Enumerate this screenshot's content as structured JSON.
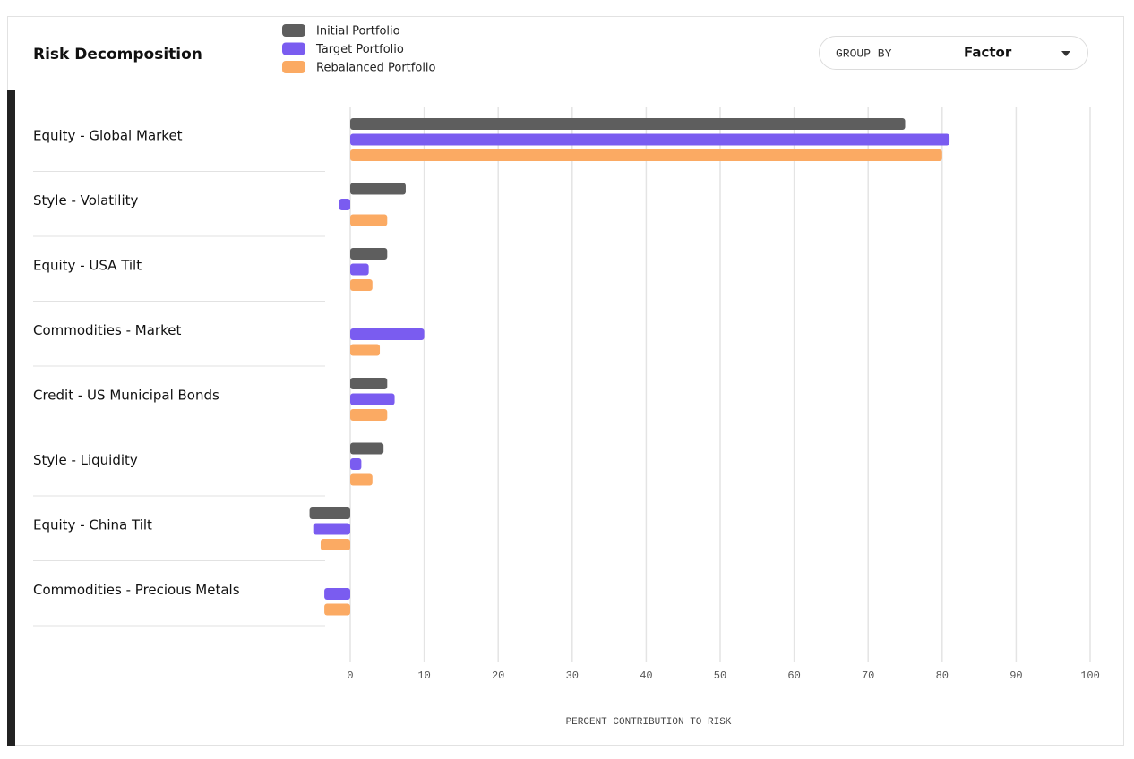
{
  "header": {
    "title": "Risk Decomposition",
    "group_by_label": "GROUP BY",
    "group_by_value": "Factor"
  },
  "chart_data": {
    "type": "bar",
    "orientation": "horizontal",
    "categories": [
      "Equity - Global Market",
      "Style - Volatility",
      "Equity - USA Tilt",
      "Commodities - Market",
      "Credit - US Municipal Bonds",
      "Style - Liquidity",
      "Equity - China Tilt",
      "Commodities - Precious Metals"
    ],
    "series": [
      {
        "name": "Initial Portfolio",
        "color": "#5e5e5e",
        "values": [
          75,
          7.5,
          5,
          0,
          5,
          4.5,
          -5.5,
          0
        ]
      },
      {
        "name": "Target Portfolio",
        "color": "#7a5cf0",
        "values": [
          81,
          -1.5,
          2.5,
          10,
          6,
          1.5,
          -5,
          -3.5
        ]
      },
      {
        "name": "Rebalanced Portfolio",
        "color": "#fbaa63",
        "values": [
          80,
          5,
          3,
          4,
          5,
          3,
          -4,
          -3.5
        ]
      }
    ],
    "xlim": [
      -6,
      100
    ],
    "xticks": [
      0,
      10,
      20,
      30,
      40,
      50,
      60,
      70,
      80,
      90,
      100
    ],
    "xlabel": "PERCENT CONTRIBUTION TO RISK",
    "grid": true
  }
}
